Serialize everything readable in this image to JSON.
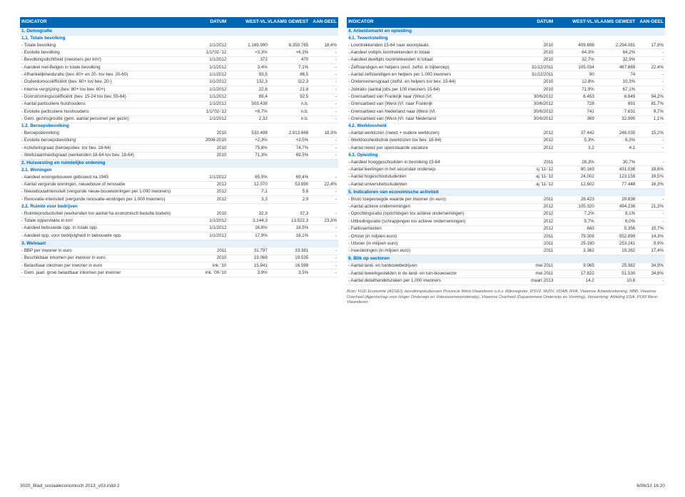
{
  "header": {
    "indicator": "INDICATOR",
    "datum": "DATUM",
    "westvl": "WEST-VL.",
    "vlaams": "VLAAMS GEWEST",
    "aandeel": "AAN-DEEL"
  },
  "left": {
    "s1": "1. Demografie",
    "s11": "1.1. Totale bevolking",
    "r": [
      [
        "- Totale bevolking",
        "1/1/2012",
        "1.169.990",
        "6.350.765",
        "18,4%"
      ],
      [
        "- Evolutie bevolking",
        "1/1/'02-'12",
        "+3,3%",
        "+6,3%",
        "-"
      ],
      [
        "- Bevolkingsdichtheid (inwoners per km²)",
        "1/1/2012",
        "372",
        "470",
        "-"
      ],
      [
        "- Aandeel niet-Belgen in totale bevolking",
        "1/1/2012",
        "3,4%",
        "7,1%",
        "-"
      ],
      [
        "- Afhankelijkheidsratio (bev. 60+ en 20- tov bev. 20-60)",
        "1/1/2012",
        "93,5",
        "86,5",
        "-"
      ],
      [
        "- Ouderdomscoëfficiënt (bev. 60+ tov bev. 20-)",
        "1/1/2012",
        "132,3",
        "112,3",
        "-"
      ],
      [
        "- Interne vergrijzing (bev. 80+ tov bev. 60+)",
        "1/1/2012",
        "22,6",
        "21,8",
        "-"
      ],
      [
        "- Doorstromingscoëfficiënt (bev. 15-24 tov bev. 55-64)",
        "1/1/2012",
        "89,4",
        "92,5",
        "-"
      ],
      [
        "- Aantal particuliere huishoudens",
        "1/1/2012",
        "503.438",
        "n.b.",
        "-"
      ],
      [
        "- Evolutie particuliere huishoudens",
        "1/1/'02-'12",
        "+8,7%",
        "n.b.",
        "-"
      ],
      [
        "- Gem. gezinsgrootte (gem. aantal personen per gezin)",
        "1/1/2012",
        "2,32",
        "n.b.",
        "-"
      ]
    ],
    "s12": "1.2. Beroepsbevolking",
    "r12": [
      [
        "- Beroepsbevolking",
        "2010",
        "533.498",
        "2.913.668",
        "18,3%"
      ],
      [
        "- Evolutie beroepsbevolking",
        "2006-2010",
        "+2,3%",
        "+3,5%",
        "-"
      ],
      [
        "- Activiteitsgraad (beroepsbev. tov bev. 18-64)",
        "2010",
        "75,8%",
        "74,7%",
        "-"
      ],
      [
        "- Werkzaamheidsgraad (werkenden 18-64 tov bev. 18-64)",
        "2010",
        "71,3%",
        "69,5%",
        "-"
      ]
    ],
    "s2": "2. Huisvesting en ruimtelijke ordening",
    "s21": "2.1. Woningen",
    "r21": [
      [
        "- Aandeel woongebouwen gebouwd na 1945",
        "1/1/2012",
        "65,5%",
        "69,4%",
        "-"
      ],
      [
        "- Aantal vergunde woningen, nieuwbouw of renovatie",
        "2012",
        "12.070",
        "53.990",
        "22,4%"
      ],
      [
        "- Nieuwbouwintensiteit (vergunde nieuw-bouwwoningen per 1.000 inwoners)",
        "2012",
        "7,1",
        "5,6",
        "-"
      ],
      [
        "- Renovatie-intensiteit (vergunde renovatie-woningen per 1.000 inwoners)",
        "2012",
        "3,3",
        "2,9",
        "-"
      ]
    ],
    "s22": "2.2. Ruimte voor bedrijven",
    "r22": [
      [
        "- Ruimteproductiviteit (werkenden tov aantal ha economisch benutte bodem)",
        "2010",
        "32,9",
        "37,3",
        "-"
      ],
      [
        "- Totale oppervlakte in km²",
        "1/1/2012",
        "3.144,3",
        "13.522,3",
        "23,3%"
      ],
      [
        "- Aandeel bebouwde opp. in totale opp.",
        "1/1/2012",
        "16,6%",
        "18,5%",
        "-"
      ],
      [
        "- Aandeel opp. voor bedrijvigheid in bebouwde opp.",
        "1/1/2012",
        "17,9%",
        "16,1%",
        "-"
      ]
    ],
    "s3": "3. Welvaart",
    "r3": [
      [
        "- BBP per inwoner in euro",
        "2011",
        "31.797",
        "33.381",
        "-"
      ],
      [
        "- Beschikbaar inkomen per inwoner in euro",
        "2010",
        "19.069",
        "19.535",
        "-"
      ],
      [
        "- Belastbaar inkomen per inwoner in euro",
        "ink. '10",
        "15.941",
        "16.599",
        "-"
      ],
      [
        "- Gem. jaarl. groei belastbaar inkomen per inwoner",
        "ink. '00-'10",
        "3,9%",
        "3,5%",
        "-"
      ]
    ]
  },
  "right": {
    "s4": "4. Arbeidsmarkt en opleiding",
    "s41": "4.1. Tewerkstelling",
    "r41": [
      [
        "- Loontrekkenden 15-64 naar woonplaats",
        "2010",
        "409.698",
        "2.294.081",
        "17,9%"
      ],
      [
        "- Aandeel voltijds loontrekkenden in totaal",
        "2010",
        "64,3%",
        "64,2%",
        "-"
      ],
      [
        "- Aandeel deeltijds loontrekkenden in totaal",
        "2010",
        "32,7%",
        "32,9%",
        "-"
      ],
      [
        "- Zelfstandigen en helpers (excl. zelfst. in bijberoep)",
        "31/12/2011",
        "105.034",
        "467.869",
        "22,4%"
      ],
      [
        "- Aantal zelfstandigen en helpers per 1.000 inwoners",
        "31/12/2011",
        "90",
        "74",
        "-"
      ],
      [
        "- Ondernemersgraad (zelfst. en helpers tov bev. 15-64)",
        "2010",
        "12,8%",
        "10,3%",
        "-"
      ],
      [
        "- Jobratio (aantal jobs per 100 inwoners 15-64)",
        "2010",
        "71,9%",
        "67,1%",
        "-"
      ],
      [
        "- Grensarbeid van Frankrijk naar (West-)Vl.",
        "30/6/2012",
        "6.453",
        "6.849",
        "94,2%"
      ],
      [
        "- Grensarbeid van (West-)Vl. naar Frankrijk",
        "30/6/2012",
        "728",
        "891",
        "81,7%"
      ],
      [
        "- Grensarbeid van Nederland naar (West-)Vl.",
        "30/6/2012",
        "741",
        "7.631",
        "9,7%"
      ],
      [
        "- Grensarbeid van (West-)Vl. naar Nederland",
        "30/6/2012",
        "369",
        "32.990",
        "1,1%"
      ]
    ],
    "s42": "4.2. Werkloosheid",
    "r42": [
      [
        "- Aantal werklozen (nwwz + oudere werklozen)",
        "2012",
        "37.442",
        "246.035",
        "15,2%"
      ],
      [
        "- Werkloosheidsdruk (werklozen tov bev. 18-64)",
        "2012",
        "5,3%",
        "6,3%",
        "-"
      ],
      [
        "- Aantal nwwz per openstaande vacature",
        "2012",
        "3,2",
        "4,1",
        "-"
      ]
    ],
    "s43": "4.3. Opleiding",
    "r43": [
      [
        "- Aandeel hooggeschoolden in bevolking 15-64",
        "2011",
        "28,3%",
        "30,7%",
        "-"
      ],
      [
        "- Aantal leerlingen in het secundair onderwijs",
        "sj '11-'12",
        "80.169",
        "431.036",
        "18,6%"
      ],
      [
        "- Aantal hogeschoolstudenten",
        "aj '11-'12",
        "24.002",
        "123.159",
        "19,5%"
      ],
      [
        "- Aantal universiteitsstudenten",
        "aj '11-'12",
        "12.602",
        "77.448",
        "16,3%"
      ]
    ],
    "s5": "5. Indicatoren van economische activiteit",
    "r5": [
      [
        "- Bruto toegevoegde waarde per inwoner (in euro)",
        "2011",
        "28.423",
        "29.838",
        "-"
      ],
      [
        "- Aantal actieve ondernemingen",
        "2012",
        "105.320",
        "494.236",
        "21,3%"
      ],
      [
        "- Oprichtingsratio (oprichtingen tov actieve ondernemingen)",
        "2012",
        "7,2%",
        "8,1%",
        "-"
      ],
      [
        "- Uittredingsratio (schrappingen tov actieve ondernemingen)",
        "2012",
        "5,7%",
        "6,0%",
        "-"
      ],
      [
        "- Faillissementen",
        "2012",
        "843",
        "5.356",
        "15,7%"
      ],
      [
        "- Omzet (in miljoen euro)",
        "2011",
        "79.308",
        "552.899",
        "14,3%"
      ],
      [
        "- Uitvoer (in miljoen euro)",
        "2011",
        "25.190",
        "253.241",
        "9,9%"
      ],
      [
        "- Investeringen (in miljoen euro)",
        "2011",
        "3.362",
        "19.282",
        "17,4%"
      ]
    ],
    "s6": "6. Blik op sectoren",
    "r6": [
      [
        "- Aantal land- en tuinbouwbedrijven",
        "mei 2011",
        "9.065",
        "25.982",
        "34,9%"
      ],
      [
        "- Aantal tewerkgestelden in de land- en tuin-bouwsector",
        "mei 2011",
        "17.822",
        "51.530",
        "34,6%"
      ],
      [
        "- Aantal detailhandelszaken per 1.000 inwoners",
        "maart 2013",
        "14,2",
        "10,8",
        "-"
      ]
    ],
    "source": "Bron: FOD Economie (ADSEI), bevolkingskubussen Provincie West-Vlaanderen o.b.v. Rijksregister, RSVZ, RIZIV, VDAB, RVA, Vlaamse Arbeidsrekening, NBB, Vlaamse Overheid (Agentschap voor Hoger Onderwijs en Volwassenenonderwijs), Vlaamse Overheid (Departement Onderwijs en Vorming), Verwerking: Afdeling DSA, POM West-Vlaanderen."
  },
  "footer": {
    "left": "3020_Blad_sociaaleconomisch 2013_v03.indd   2",
    "right": "6/06/13   16:20"
  },
  "colors": {
    "header_bg": "#0066b3",
    "section_bg": "#e6f0f8",
    "accent": "#0066b3"
  }
}
